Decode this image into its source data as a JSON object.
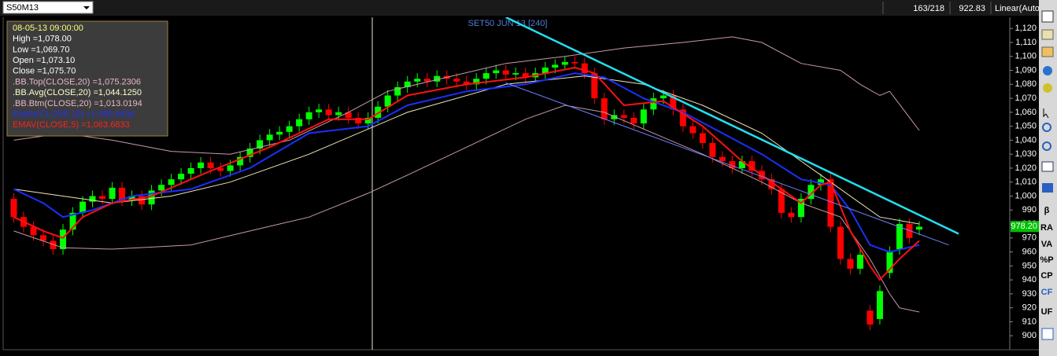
{
  "header": {
    "symbol": "S50M13",
    "counter": "163/218",
    "last": "922.83",
    "scale": "Linear(Auto"
  },
  "toolbar": [
    "β",
    "RA",
    "VA",
    "%P",
    "CP",
    "CF",
    "UF"
  ],
  "info": {
    "lines": [
      {
        "text": "08-05-13 09:00:00",
        "color": "#ffff80"
      },
      {
        "text": "High =1,078.00",
        "color": "#ffffff"
      },
      {
        "text": "Low =1,069.70",
        "color": "#ffffff"
      },
      {
        "text": "Open =1,073.10",
        "color": "#ffffff"
      },
      {
        "text": "Close =1,075.70",
        "color": "#ffffff"
      },
      {
        "text": ".BB.Top(CLOSE,20) =1,075.2306",
        "color": "#e8b8c8"
      },
      {
        "text": ".BB.Avg(CLOSE,20) =1,044.1250",
        "color": "#ffffd0"
      },
      {
        "text": ".BB.Btm(CLOSE,20) =1,013.0194",
        "color": "#e8b8c8"
      },
      {
        "text": "EMAV(CLOSE,10) =1,050.6434",
        "color": "#2030ff"
      },
      {
        "text": "EMAV(CLOSE,5) =1,063.6833",
        "color": "#ff2020"
      }
    ]
  },
  "chart_data": {
    "type": "candlestick",
    "title": "SET50 JUN 13 [240]",
    "up_color": "#00ff00",
    "down_color": "#ff0000",
    "open": [
      998,
      985,
      978,
      972,
      968,
      962,
      976,
      988,
      996,
      1000,
      998,
      1006,
      997,
      1000,
      994,
      1004,
      1008,
      1012,
      1016,
      1020,
      1024,
      1020,
      1018,
      1022,
      1028,
      1034,
      1040,
      1044,
      1046,
      1050,
      1055,
      1060,
      1062,
      1058,
      1060,
      1056,
      1052,
      1056,
      1064,
      1072,
      1078,
      1082,
      1084,
      1082,
      1086,
      1084,
      1082,
      1080,
      1084,
      1088,
      1090,
      1087,
      1088,
      1085,
      1088,
      1092,
      1094,
      1096,
      1095,
      1088,
      1070,
      1055,
      1058,
      1056,
      1052,
      1062,
      1070,
      1072,
      1062,
      1050,
      1045,
      1038,
      1028,
      1025,
      1020,
      1025,
      1018,
      1012,
      1005,
      988,
      985,
      998,
      1008,
      1012,
      978,
      955,
      948,
      918,
      912,
      945,
      962,
      980,
      976
    ],
    "high": [
      1002,
      989,
      982,
      976,
      972,
      980,
      992,
      1000,
      1004,
      1004,
      1010,
      1010,
      1004,
      1004,
      1008,
      1012,
      1016,
      1020,
      1024,
      1028,
      1028,
      1024,
      1026,
      1032,
      1038,
      1044,
      1048,
      1050,
      1054,
      1059,
      1064,
      1066,
      1066,
      1064,
      1064,
      1060,
      1060,
      1068,
      1076,
      1082,
      1086,
      1088,
      1088,
      1090,
      1090,
      1088,
      1086,
      1088,
      1092,
      1094,
      1094,
      1092,
      1092,
      1092,
      1096,
      1098,
      1100,
      1100,
      1099,
      1092,
      1074,
      1062,
      1062,
      1060,
      1066,
      1074,
      1076,
      1076,
      1066,
      1054,
      1049,
      1042,
      1032,
      1029,
      1029,
      1029,
      1022,
      1016,
      1009,
      992,
      1002,
      1012,
      1016,
      1016,
      982,
      959,
      962,
      922,
      936,
      964,
      984,
      984,
      982
    ],
    "low": [
      981,
      974,
      968,
      964,
      958,
      958,
      972,
      984,
      992,
      994,
      994,
      993,
      993,
      990,
      990,
      1000,
      1004,
      1008,
      1012,
      1016,
      1016,
      1014,
      1014,
      1018,
      1024,
      1030,
      1036,
      1040,
      1042,
      1046,
      1051,
      1056,
      1054,
      1054,
      1052,
      1048,
      1048,
      1052,
      1060,
      1068,
      1074,
      1078,
      1078,
      1078,
      1080,
      1078,
      1076,
      1076,
      1080,
      1084,
      1083,
      1083,
      1081,
      1081,
      1084,
      1088,
      1090,
      1091,
      1084,
      1066,
      1051,
      1051,
      1052,
      1048,
      1048,
      1058,
      1066,
      1058,
      1046,
      1041,
      1034,
      1024,
      1021,
      1016,
      1016,
      1014,
      1008,
      1001,
      984,
      981,
      981,
      994,
      1004,
      974,
      951,
      944,
      944,
      904,
      908,
      941,
      958,
      966,
      972
    ],
    "close": [
      985,
      978,
      972,
      968,
      962,
      976,
      988,
      996,
      1000,
      998,
      1006,
      997,
      1000,
      994,
      1004,
      1008,
      1012,
      1016,
      1020,
      1024,
      1020,
      1018,
      1022,
      1028,
      1034,
      1040,
      1044,
      1046,
      1050,
      1055,
      1060,
      1062,
      1058,
      1060,
      1056,
      1052,
      1056,
      1064,
      1072,
      1078,
      1082,
      1084,
      1082,
      1086,
      1084,
      1082,
      1080,
      1084,
      1088,
      1090,
      1087,
      1088,
      1085,
      1088,
      1092,
      1094,
      1096,
      1095,
      1088,
      1070,
      1055,
      1058,
      1056,
      1052,
      1062,
      1070,
      1072,
      1062,
      1050,
      1045,
      1038,
      1028,
      1025,
      1020,
      1025,
      1018,
      1012,
      1005,
      988,
      985,
      998,
      1008,
      1012,
      978,
      955,
      948,
      958,
      908,
      932,
      960,
      980,
      970,
      978
    ],
    "series": [
      {
        "name": ".BB.Top(CLOSE,20)",
        "color": "#c89aa8",
        "width": 1,
        "x": [
          0,
          5,
          10,
          16,
          22,
          28,
          34,
          38,
          44,
          50,
          56,
          62,
          68,
          73,
          76,
          80,
          84,
          86,
          88,
          89,
          92
        ],
        "values": [
          1040,
          1045,
          1040,
          1032,
          1030,
          1040,
          1060,
          1075,
          1085,
          1095,
          1100,
          1106,
          1110,
          1114,
          1110,
          1095,
          1090,
          1080,
          1072,
          1075,
          1047
        ]
      },
      {
        "name": ".BB.Avg(CLOSE,20)",
        "color": "#f0e6b8",
        "width": 1,
        "x": [
          0,
          5,
          10,
          16,
          22,
          30,
          40,
          50,
          58,
          64,
          70,
          76,
          82,
          88,
          92
        ],
        "values": [
          1005,
          1000,
          995,
          1000,
          1010,
          1030,
          1060,
          1080,
          1086,
          1080,
          1065,
          1045,
          1015,
          985,
          980
        ]
      },
      {
        "name": ".BB.Btm(CLOSE,20)",
        "color": "#c89aa8",
        "width": 1,
        "x": [
          0,
          5,
          10,
          18,
          24,
          30,
          36,
          40,
          46,
          52,
          56,
          60,
          64,
          70,
          76,
          80,
          84,
          87,
          89,
          90,
          92
        ],
        "values": [
          975,
          963,
          962,
          965,
          975,
          985,
          1002,
          1015,
          1035,
          1055,
          1065,
          1060,
          1048,
          1030,
          1010,
          995,
          985,
          955,
          930,
          920,
          917
        ]
      },
      {
        "name": "EMAV(CLOSE,10)",
        "color": "#1830ff",
        "width": 2,
        "x": [
          0,
          3,
          5,
          8,
          12,
          18,
          24,
          30,
          36,
          40,
          46,
          52,
          57,
          60,
          64,
          68,
          72,
          76,
          80,
          83,
          85,
          87,
          89,
          92
        ],
        "values": [
          1005,
          995,
          985,
          990,
          1000,
          1005,
          1020,
          1045,
          1050,
          1065,
          1075,
          1080,
          1088,
          1085,
          1070,
          1060,
          1045,
          1030,
          1012,
          1008,
          990,
          965,
          960,
          965
        ]
      },
      {
        "name": "EMAV(CLOSE,5)",
        "color": "#ff1010",
        "width": 2,
        "x": [
          0,
          3,
          5,
          7,
          10,
          14,
          20,
          26,
          32,
          36,
          40,
          46,
          52,
          57,
          59,
          62,
          66,
          70,
          74,
          78,
          80,
          82,
          83,
          85,
          87,
          88,
          90,
          92
        ],
        "values": [
          985,
          975,
          970,
          985,
          995,
          1000,
          1018,
          1035,
          1055,
          1055,
          1072,
          1080,
          1085,
          1092,
          1088,
          1065,
          1068,
          1050,
          1025,
          1005,
          995,
          1008,
          1010,
          975,
          950,
          940,
          955,
          968
        ]
      },
      {
        "name": "trend-upper",
        "color": "#20e0f0",
        "width": 2.5,
        "x": [
          50,
          96
        ],
        "values": [
          1128,
          973
        ]
      },
      {
        "name": "trend-lower",
        "color": "#7080ff",
        "width": 1,
        "x": [
          50,
          95
        ],
        "values": [
          1081,
          965
        ]
      }
    ],
    "xlim": [
      -1,
      101.2
    ],
    "ylim": [
      890,
      1128
    ],
    "yticks": [
      900,
      910,
      920,
      930,
      940,
      950,
      960,
      970,
      980,
      990,
      {
        "value": 1000,
        "label": "1,000"
      },
      {
        "value": 1010,
        "label": "1,010"
      },
      {
        "value": 1020,
        "label": "1,020"
      },
      {
        "value": 1030,
        "label": "1,030"
      },
      {
        "value": 1040,
        "label": "1,040"
      },
      {
        "value": 1050,
        "label": "1,050"
      },
      {
        "value": 1060,
        "label": "1,060"
      },
      {
        "value": 1070,
        "label": "1,070"
      },
      {
        "value": 1080,
        "label": "1,080"
      },
      {
        "value": 1090,
        "label": "1,090"
      },
      {
        "value": 1100,
        "label": "1,100"
      },
      {
        "value": 1110,
        "label": "1,110"
      },
      {
        "value": 1120,
        "label": "1,120"
      }
    ],
    "last_price": {
      "value": 978.2,
      "label": "978.20"
    }
  }
}
